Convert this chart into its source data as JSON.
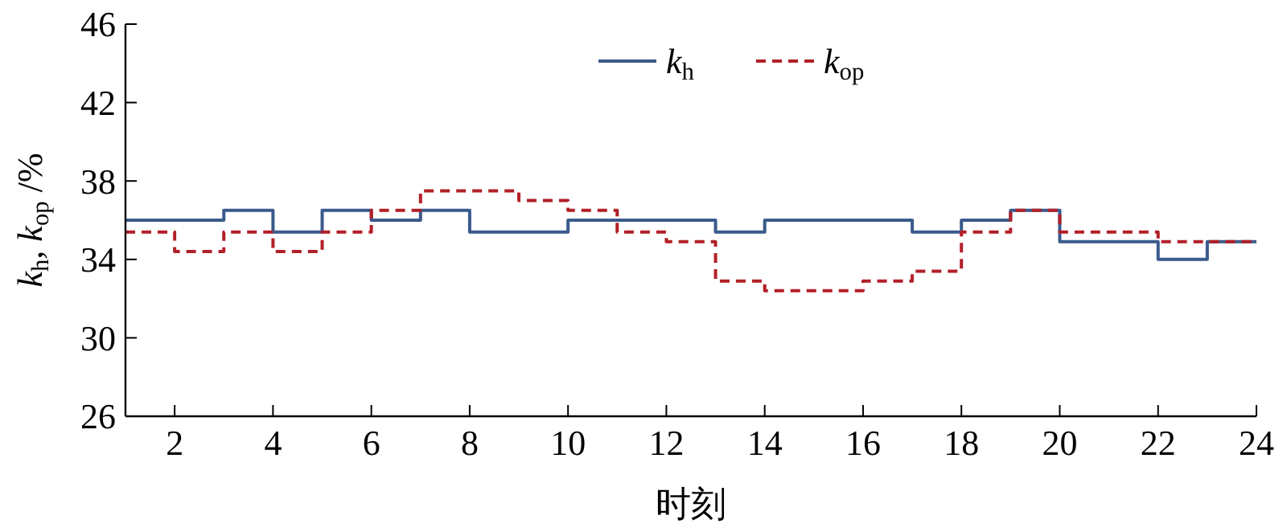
{
  "chart_data": {
    "type": "step",
    "xlabel": "时刻",
    "ylabel": "k$_{h}$, k$_{op}$ /%",
    "x": [
      1,
      2,
      3,
      4,
      5,
      6,
      7,
      8,
      9,
      10,
      11,
      12,
      13,
      14,
      15,
      16,
      17,
      18,
      19,
      20,
      21,
      22,
      23,
      24
    ],
    "series": [
      {
        "name": "k$_{h}$",
        "color": "#3a5a8c",
        "line_style": "solid",
        "values": [
          36,
          36,
          36.5,
          35.4,
          36.5,
          36,
          36.5,
          35.4,
          35.4,
          36,
          36,
          36,
          35.4,
          36,
          36,
          36,
          35.4,
          36,
          36.5,
          34.9,
          34.9,
          34,
          34.9,
          34.9
        ]
      },
      {
        "name": "k$_{op}$",
        "color": "#b22028",
        "line_style": "dashed",
        "values": [
          35.4,
          34.4,
          35.4,
          34.4,
          35.4,
          36.5,
          37.5,
          37.5,
          37,
          36.5,
          35.4,
          34.9,
          32.9,
          32.4,
          32.4,
          32.9,
          33.4,
          35.4,
          36.5,
          35.4,
          35.4,
          34.9,
          34.9,
          34.9
        ]
      }
    ],
    "xlim": [
      1,
      24
    ],
    "xticks": [
      2,
      4,
      6,
      8,
      10,
      12,
      14,
      16,
      18,
      20,
      22,
      24
    ],
    "ylim": [
      26,
      46
    ],
    "yticks": [
      26,
      30,
      34,
      38,
      42,
      46
    ],
    "grid": false,
    "legend": "top"
  }
}
